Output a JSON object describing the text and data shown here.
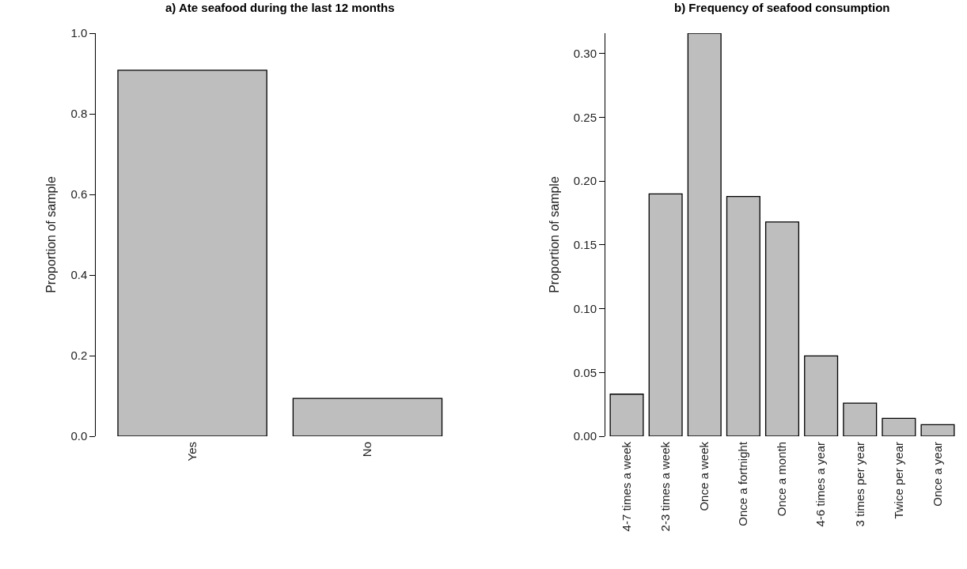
{
  "chart_data": [
    {
      "type": "bar",
      "title": "a) Ate seafood during the last 12 months",
      "ylabel": "Proportion of sample",
      "categories": [
        "Yes",
        "No"
      ],
      "values": [
        0.908,
        0.094
      ],
      "color": "#bebebe",
      "ylim": [
        0,
        1.0
      ],
      "yticks": [
        {
          "value": 0,
          "label": "0.0"
        },
        {
          "value": 0.2,
          "label": "0.2"
        },
        {
          "value": 0.4,
          "label": "0.4"
        },
        {
          "value": 0.6,
          "label": "0.6"
        },
        {
          "value": 0.8,
          "label": "0.8"
        },
        {
          "value": 1.0,
          "label": "1.0"
        }
      ]
    },
    {
      "type": "bar",
      "title": "b) Frequency of seafood consumption",
      "ylabel": "Proportion of sample",
      "categories": [
        "4-7 times a week",
        "2-3 times a week",
        "Once a week",
        "Once a fortnight",
        "Once a month",
        "4-6 times a year",
        "3 times per year",
        "Twice per year",
        "Once a year"
      ],
      "values": [
        0.033,
        0.19,
        0.316,
        0.188,
        0.168,
        0.063,
        0.026,
        0.014,
        0.009
      ],
      "color": "#bebebe",
      "ylim": [
        0,
        0.316
      ],
      "yticks": [
        {
          "value": 0,
          "label": "0.00"
        },
        {
          "value": 0.05,
          "label": "0.05"
        },
        {
          "value": 0.1,
          "label": "0.10"
        },
        {
          "value": 0.15,
          "label": "0.15"
        },
        {
          "value": 0.2,
          "label": "0.20"
        },
        {
          "value": 0.25,
          "label": "0.25"
        },
        {
          "value": 0.3,
          "label": "0.30"
        }
      ]
    }
  ]
}
